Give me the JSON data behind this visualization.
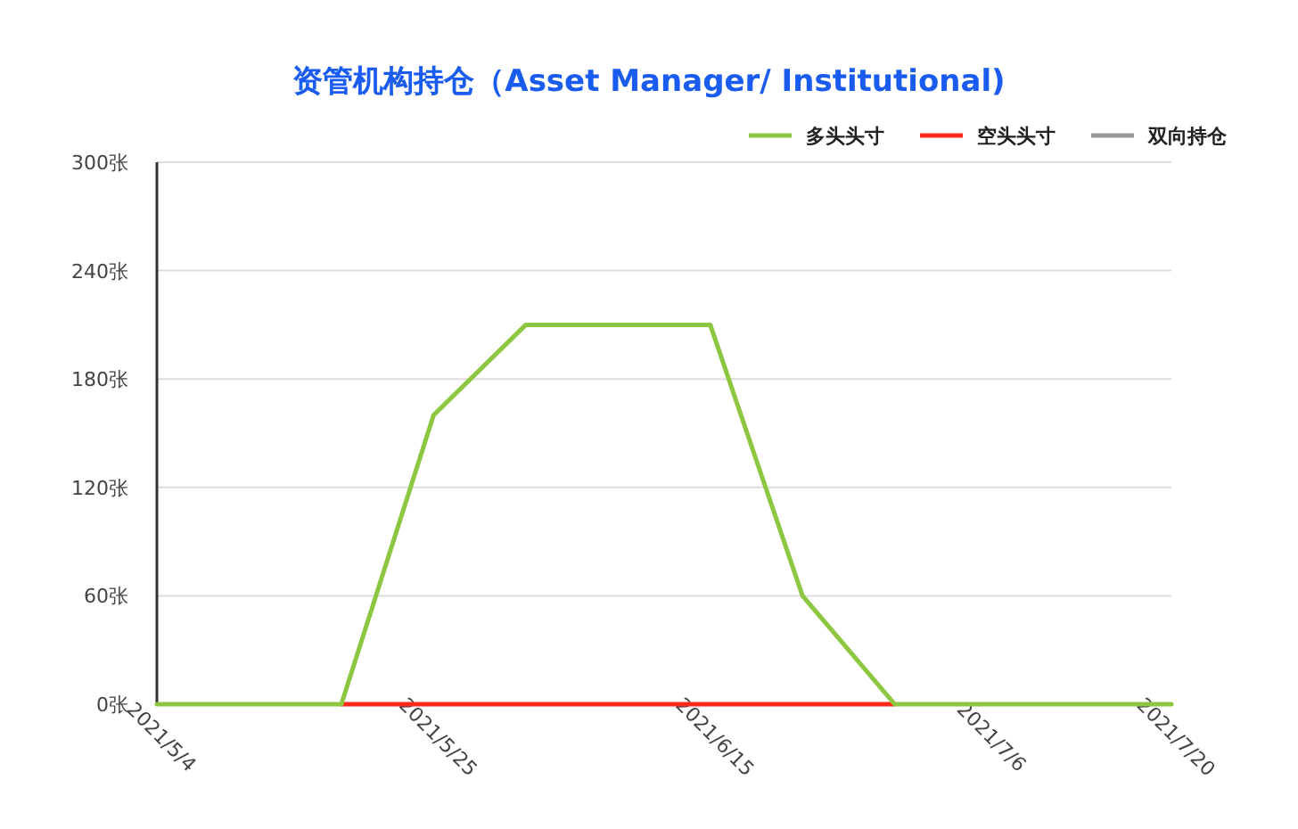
{
  "chart_data": {
    "type": "line",
    "title": "资管机构持仓（Asset Manager/ Institutional)",
    "x": [
      "2021-05-04",
      "2021-05-11",
      "2021-05-18",
      "2021-05-25",
      "2021-06-01",
      "2021-06-08",
      "2021-06-15",
      "2021-06-22",
      "2021-06-29",
      "2021-07-06",
      "2021-07-13",
      "2021-07-20"
    ],
    "series": [
      {
        "name": "多头头寸",
        "color": "#8dc641",
        "values": [
          0,
          0,
          0,
          160,
          210,
          210,
          210,
          60,
          0,
          0,
          0,
          0
        ]
      },
      {
        "name": "空头头寸",
        "color": "#ff2a1a",
        "values": [
          null,
          null,
          0,
          0,
          0,
          0,
          0,
          0,
          0,
          null,
          null,
          null
        ]
      },
      {
        "name": "双向持仓",
        "color": "#999999",
        "values": [
          null,
          null,
          null,
          null,
          null,
          null,
          null,
          null,
          null,
          null,
          null,
          null
        ]
      }
    ],
    "xlim": [
      "2021-05-04",
      "2021-07-20"
    ],
    "xticks": [
      {
        "value": "2021-05-04",
        "label": "2021/5/4"
      },
      {
        "value": "2021-05-25",
        "label": "2021/5/25"
      },
      {
        "value": "2021-06-15",
        "label": "2021/6/15"
      },
      {
        "value": "2021-07-06",
        "label": "2021/7/6"
      },
      {
        "value": "2021-07-20",
        "label": "2021/7/20"
      }
    ],
    "ylim": [
      0,
      300
    ],
    "yticks": [
      {
        "value": 0,
        "label": "0张"
      },
      {
        "value": 60,
        "label": "60张"
      },
      {
        "value": 120,
        "label": "120张"
      },
      {
        "value": 180,
        "label": "180张"
      },
      {
        "value": 240,
        "label": "240张"
      },
      {
        "value": 300,
        "label": "300张"
      }
    ],
    "grid": "y",
    "legend": "top right"
  }
}
